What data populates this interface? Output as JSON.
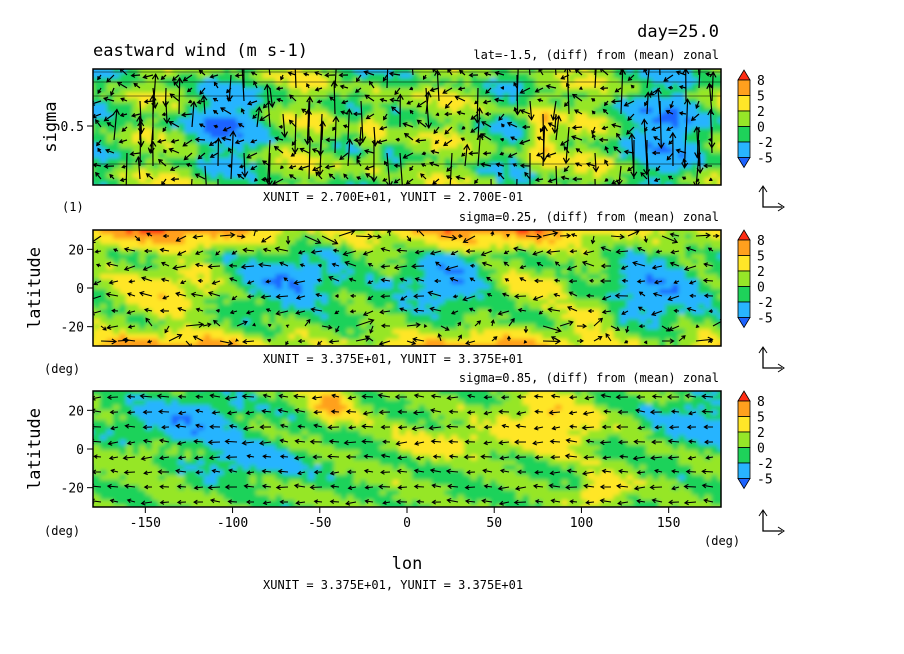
{
  "figure": {
    "title": "eastward wind (m s-1)",
    "day_label": "day=25.0",
    "xlabel": "lon",
    "xunit_label": "(deg)"
  },
  "colorbar": {
    "levels": [
      "8",
      "5",
      "2",
      "0",
      "-2",
      "-5"
    ],
    "colors": [
      "#1e64ff",
      "#28b4ff",
      "#1ed25a",
      "#96e628",
      "#ffe628",
      "#ffa01e",
      "#ff2d14"
    ]
  },
  "chart_data": [
    {
      "type": "heatmap",
      "name": "panel-top",
      "subtitle": "lat=-1.5, (diff) from (mean) zonal",
      "ylabel": "sigma",
      "yunit_label": "(1)",
      "y_ticks": [
        "0.5"
      ],
      "unit_vector_label": "XUNIT = 2.700E+01, YUNIT = 2.700E-01"
    },
    {
      "type": "heatmap",
      "name": "panel-middle",
      "subtitle": "sigma=0.25, (diff) from (mean) zonal",
      "ylabel": "latitude",
      "yunit_label": "(deg)",
      "y_ticks": [
        "20",
        "0",
        "-20"
      ],
      "unit_vector_label": "XUNIT = 3.375E+01, YUNIT = 3.375E+01"
    },
    {
      "type": "heatmap",
      "name": "panel-bottom",
      "subtitle": "sigma=0.85, (diff) from (mean) zonal",
      "ylabel": "latitude",
      "yunit_label": "(deg)",
      "y_ticks": [
        "20",
        "0",
        "-20"
      ],
      "x_ticks": [
        "-150",
        "-100",
        "-50",
        "0",
        "50",
        "100",
        "150"
      ],
      "unit_vector_label": "XUNIT = 3.375E+01, YUNIT = 3.375E+01"
    }
  ]
}
